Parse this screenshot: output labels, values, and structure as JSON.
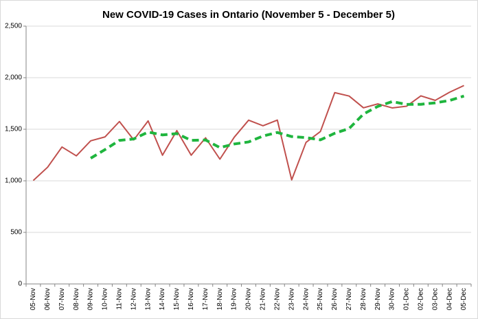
{
  "chart_data": {
    "type": "line",
    "title": "New COVID-19 Cases in Ontario (November 5 - December 5)",
    "categories": [
      "05-Nov",
      "06-Nov",
      "07-Nov",
      "08-Nov",
      "09-Nov",
      "10-Nov",
      "11-Nov",
      "12-Nov",
      "13-Nov",
      "14-Nov",
      "15-Nov",
      "16-Nov",
      "17-Nov",
      "18-Nov",
      "19-Nov",
      "20-Nov",
      "21-Nov",
      "22-Nov",
      "23-Nov",
      "24-Nov",
      "25-Nov",
      "26-Nov",
      "27-Nov",
      "28-Nov",
      "29-Nov",
      "30-Nov",
      "01-Dec",
      "02-Dec",
      "03-Dec",
      "04-Dec",
      "05-Dec"
    ],
    "series": [
      {
        "color": "#c0504d",
        "dashed": false,
        "values": [
          1003,
          1132,
          1328,
          1242,
          1388,
          1426,
          1575,
          1397,
          1581,
          1248,
          1487,
          1248,
          1417,
          1210,
          1423,
          1588,
          1534,
          1589,
          1009,
          1373,
          1478,
          1855,
          1822,
          1708,
          1746,
          1707,
          1723,
          1824,
          1780,
          1859,
          1924
        ]
      },
      {
        "color": "#1fb53e",
        "dashed": true,
        "values": [
          null,
          null,
          null,
          null,
          1219,
          1303,
          1392,
          1406,
          1473,
          1445,
          1458,
          1392,
          1396,
          1322,
          1357,
          1377,
          1434,
          1469,
          1429,
          1419,
          1397,
          1461,
          1507,
          1647,
          1722,
          1768,
          1741,
          1742,
          1756,
          1779,
          1822
        ]
      }
    ],
    "ylim": [
      0,
      2500
    ],
    "yticks": [
      0,
      500,
      {
        "value": 1000,
        "label": "1,000"
      },
      {
        "value": 1500,
        "label": "1,500"
      },
      {
        "value": 2000,
        "label": "2,000"
      },
      {
        "value": 2500,
        "label": "2,500"
      }
    ],
    "grid": true
  }
}
